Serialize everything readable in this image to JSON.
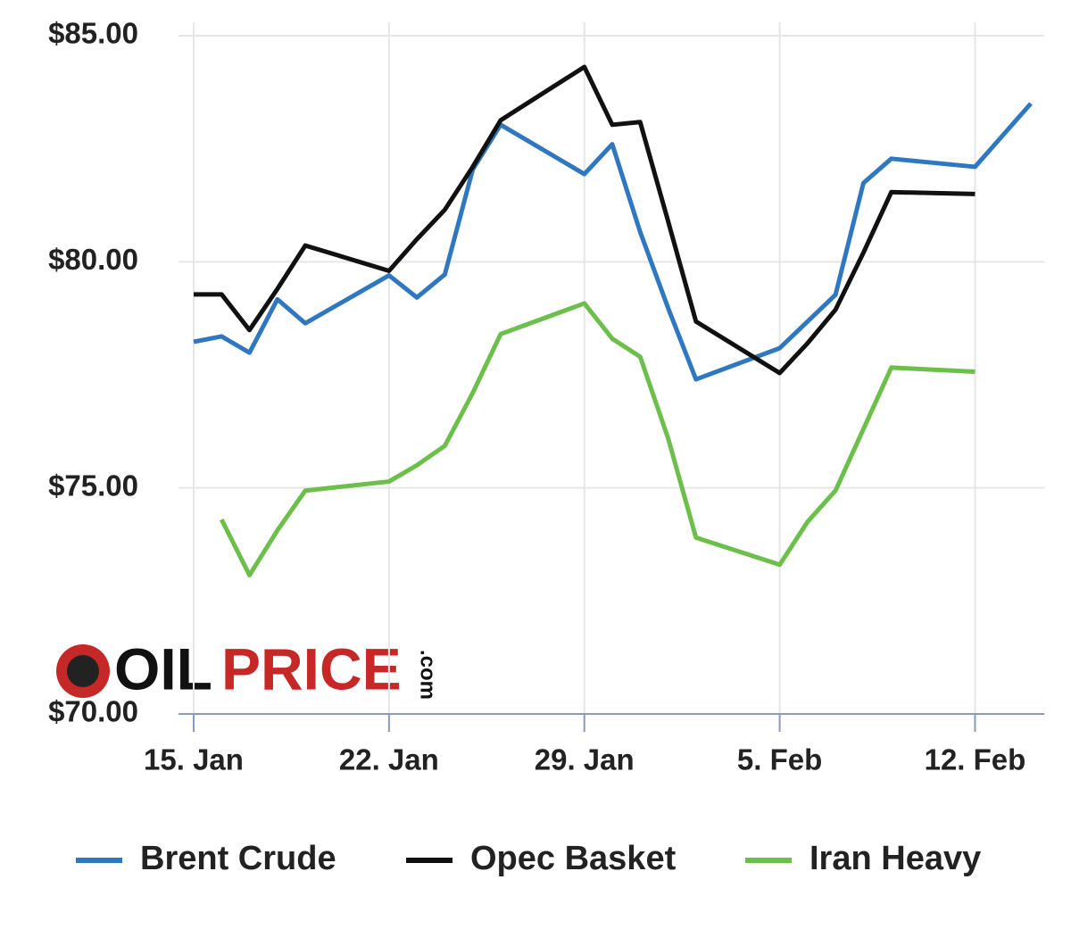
{
  "chart_data": {
    "type": "line",
    "x": [
      "15. Jan",
      "16. Jan",
      "17. Jan",
      "18. Jan",
      "19. Jan",
      "22. Jan",
      "23. Jan",
      "24. Jan",
      "25. Jan",
      "26. Jan",
      "29. Jan",
      "30. Jan",
      "31. Jan",
      "1. Feb",
      "2. Feb",
      "5. Feb",
      "6. Feb",
      "7. Feb",
      "8. Feb",
      "9. Feb",
      "12. Feb",
      "13. Feb",
      "14. Feb"
    ],
    "series": [
      {
        "name": "Brent Crude",
        "color": "#2f78c0",
        "values": [
          78.23,
          78.35,
          77.99,
          79.17,
          78.64,
          79.7,
          79.21,
          79.72,
          82.04,
          83.03,
          81.94,
          82.6,
          80.66,
          78.98,
          77.4,
          78.09,
          78.68,
          79.27,
          81.74,
          82.28,
          82.1,
          82.8,
          83.5
        ]
      },
      {
        "name": "Opec Basket",
        "color": "#111111",
        "values": [
          79.28,
          79.28,
          78.49,
          79.4,
          80.36,
          79.8,
          80.5,
          81.15,
          82.1,
          83.13,
          84.31,
          83.03,
          83.09,
          80.9,
          78.68,
          77.54,
          78.2,
          78.94,
          80.2,
          81.54,
          81.5,
          null,
          null
        ]
      },
      {
        "name": "Iran Heavy",
        "color": "#6cbf4a",
        "values": [
          null,
          74.3,
          73.07,
          74.06,
          74.94,
          75.14,
          75.5,
          75.93,
          77.1,
          78.4,
          79.08,
          78.3,
          77.9,
          76.1,
          73.9,
          73.3,
          74.25,
          74.94,
          76.3,
          77.66,
          77.57,
          null,
          null
        ]
      }
    ],
    "xlim": [
      "15. Jan",
      "14. Feb"
    ],
    "xticks": [
      "15. Jan",
      "22. Jan",
      "29. Jan",
      "5. Feb",
      "12. Feb"
    ],
    "ylim": [
      70,
      85
    ],
    "yticks": [
      {
        "value": 70,
        "label": "$70.00"
      },
      {
        "value": 75,
        "label": "$75.00"
      },
      {
        "value": 80,
        "label": "$80.00"
      },
      {
        "value": 85,
        "label": "$85.00"
      }
    ],
    "grid": true,
    "logo": {
      "oil": "OIL",
      "price": "PRICE",
      "com": ".com"
    }
  }
}
